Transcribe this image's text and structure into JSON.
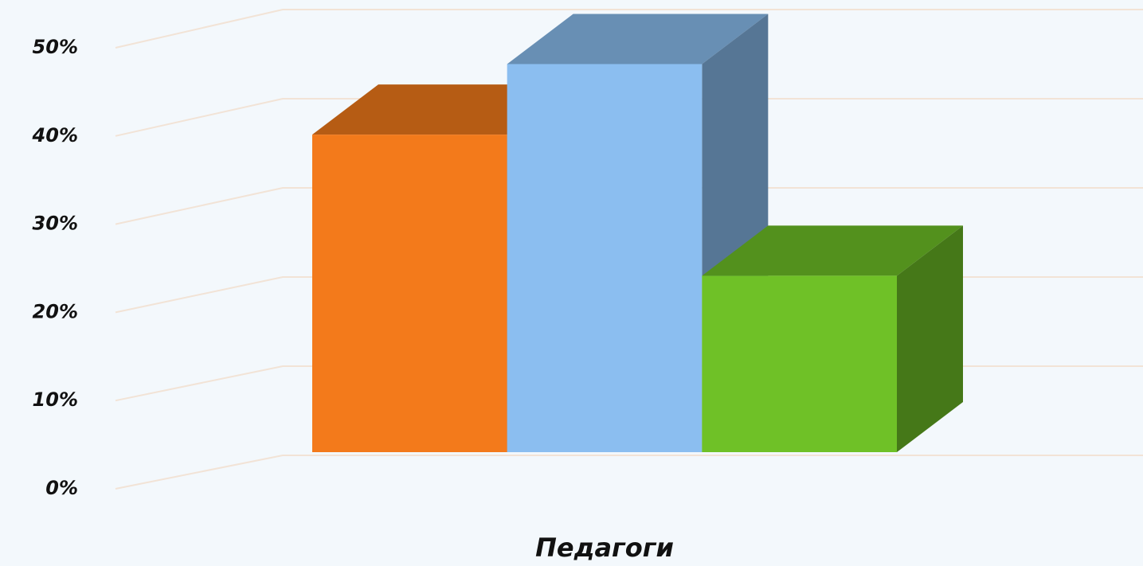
{
  "chart_data": {
    "type": "bar3d",
    "categories": [
      "Педагоги"
    ],
    "series": [
      {
        "color": "#f37a1b",
        "values": [
          36
        ]
      },
      {
        "color": "#8bbef0",
        "values": [
          44
        ]
      },
      {
        "color": "#6fc127",
        "values": [
          20
        ]
      }
    ],
    "ylim": [
      0,
      50
    ],
    "yticks": [
      {
        "value": 0,
        "label": "0%"
      },
      {
        "value": 10,
        "label": "10%"
      },
      {
        "value": 20,
        "label": "20%"
      },
      {
        "value": 30,
        "label": "30%"
      },
      {
        "value": 40,
        "label": "40%"
      },
      {
        "value": 50,
        "label": "50%"
      }
    ],
    "grid": true
  }
}
